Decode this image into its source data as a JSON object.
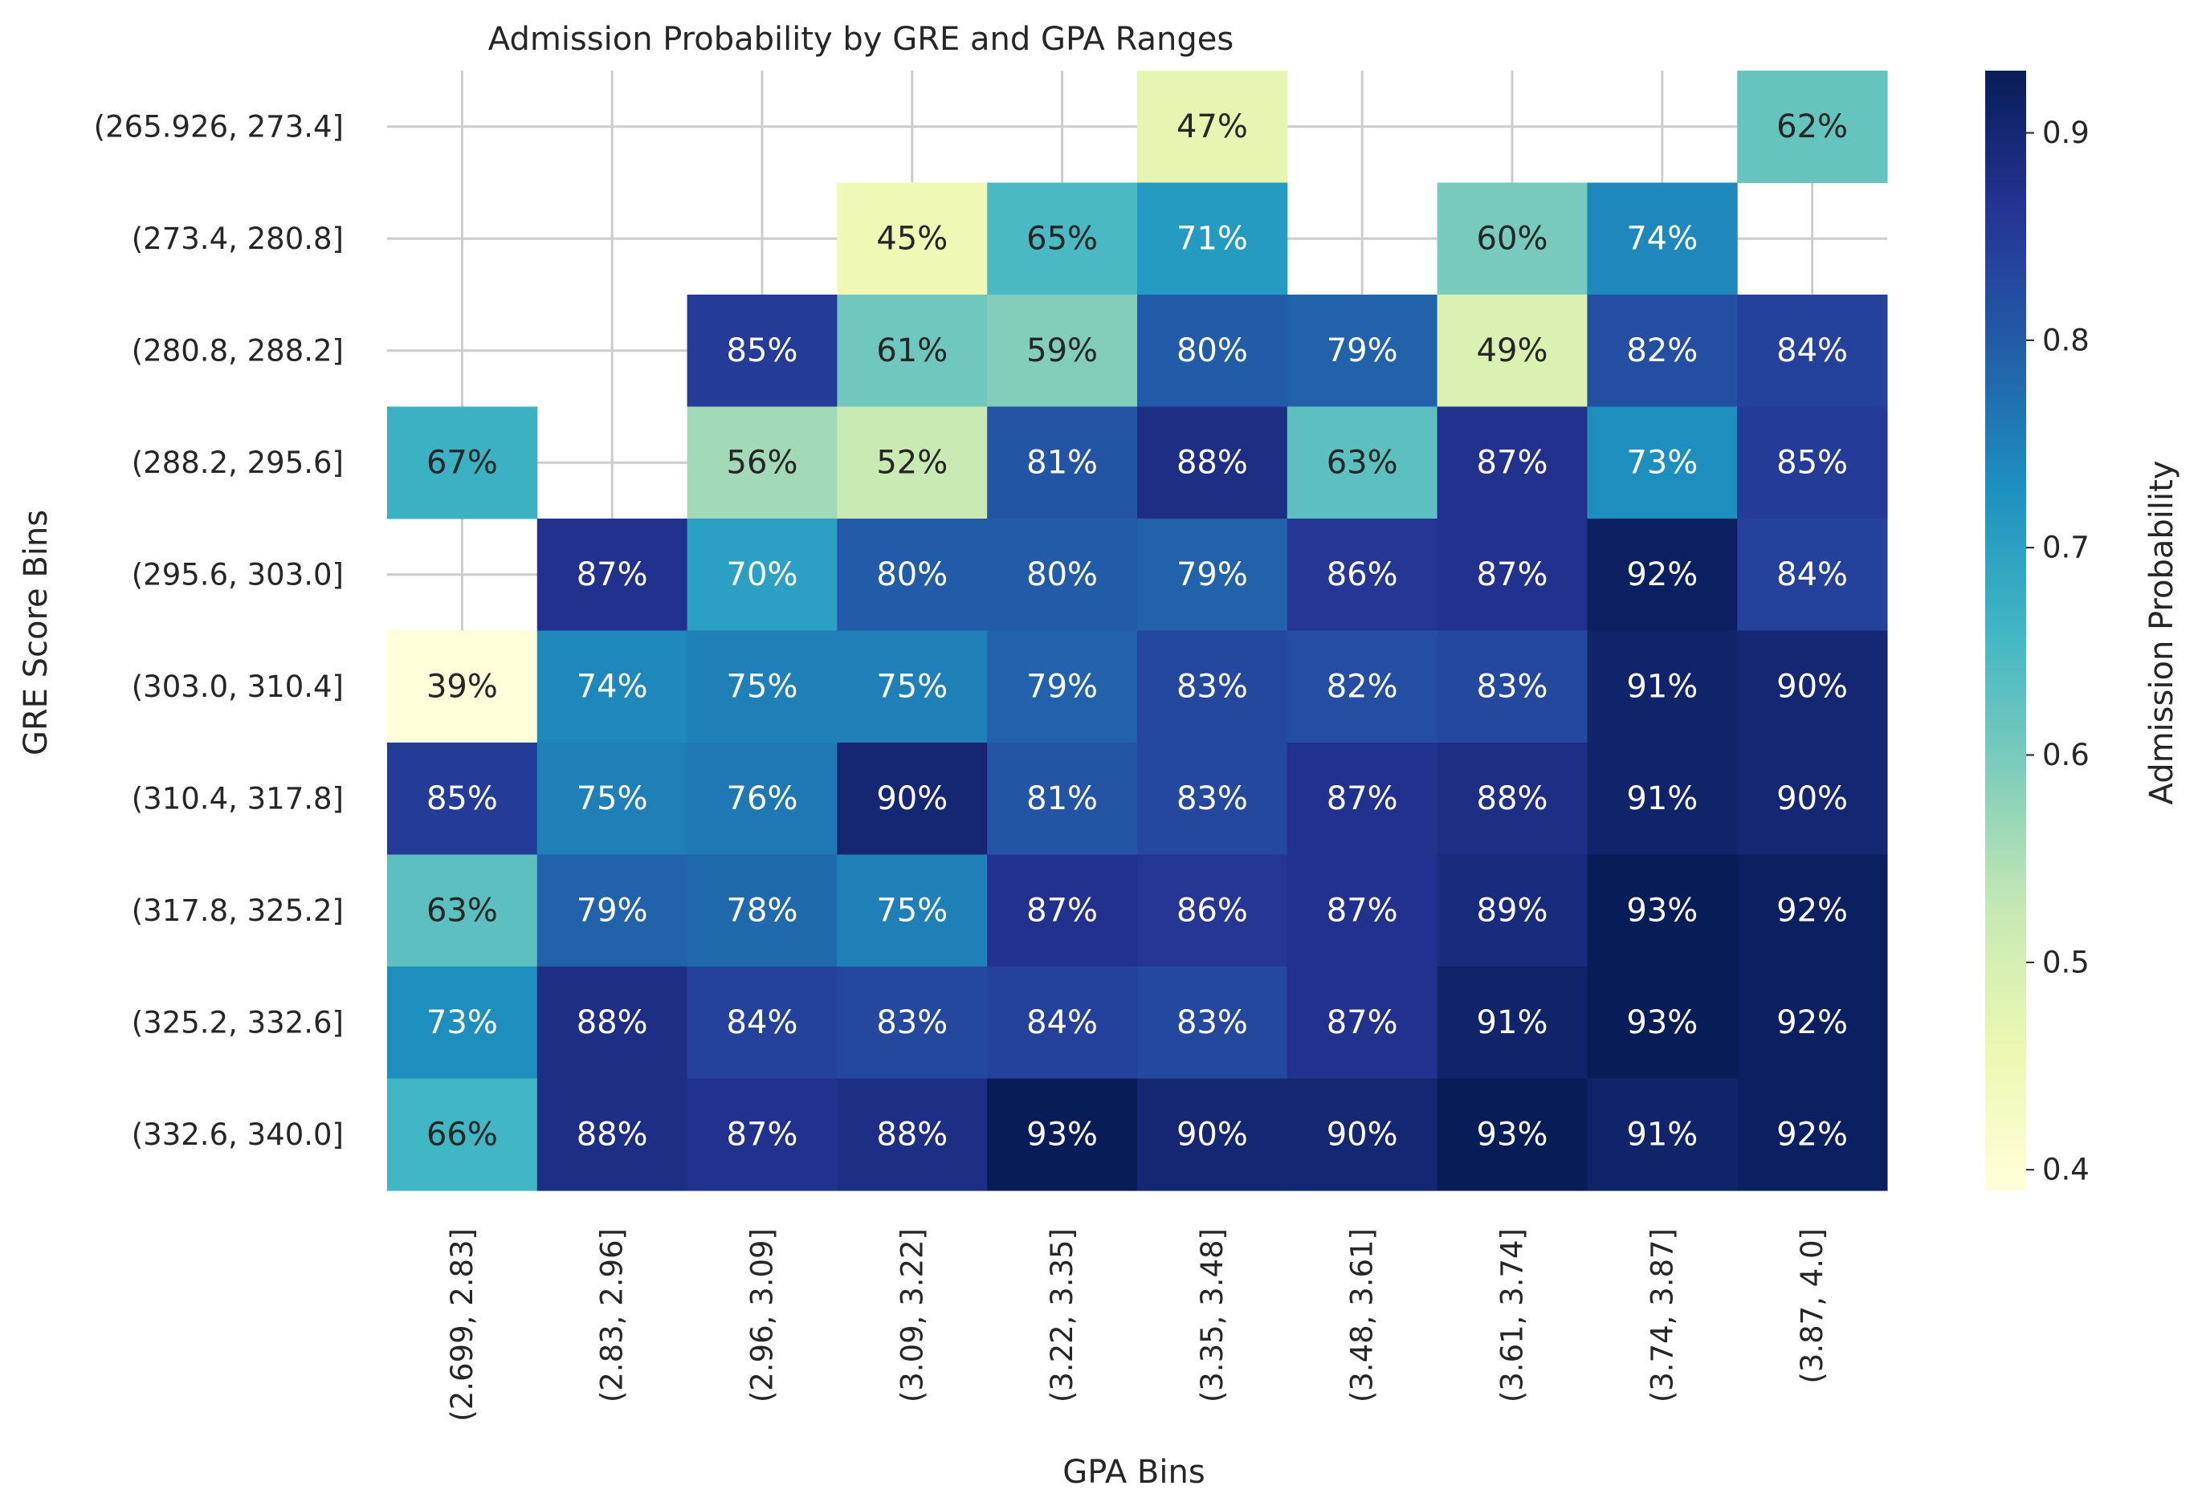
{
  "chart_data": {
    "type": "heatmap",
    "title": "Admission Probability by GRE and GPA Ranges",
    "xlabel": "GPA Bins",
    "ylabel": "GRE Score Bins",
    "x_categories": [
      "(2.699, 2.83]",
      "(2.83, 2.96]",
      "(2.96, 3.09]",
      "(3.09, 3.22]",
      "(3.22, 3.35]",
      "(3.35, 3.48]",
      "(3.48, 3.61]",
      "(3.61, 3.74]",
      "(3.74, 3.87]",
      "(3.87, 4.0]"
    ],
    "y_categories": [
      "(265.926, 273.4]",
      "(273.4, 280.8]",
      "(280.8, 288.2]",
      "(288.2, 295.6]",
      "(295.6, 303.0]",
      "(303.0, 310.4]",
      "(310.4, 317.8]",
      "(317.8, 325.2]",
      "(325.2, 332.6]",
      "(332.6, 340.0]"
    ],
    "values": [
      [
        null,
        null,
        null,
        null,
        null,
        0.47,
        null,
        null,
        null,
        0.62
      ],
      [
        null,
        null,
        null,
        0.45,
        0.65,
        0.71,
        null,
        0.6,
        0.74,
        null
      ],
      [
        null,
        null,
        0.85,
        0.61,
        0.59,
        0.8,
        0.79,
        0.49,
        0.82,
        0.84
      ],
      [
        0.67,
        null,
        0.56,
        0.52,
        0.81,
        0.88,
        0.63,
        0.87,
        0.73,
        0.85
      ],
      [
        null,
        0.87,
        0.7,
        0.8,
        0.8,
        0.79,
        0.86,
        0.87,
        0.92,
        0.84
      ],
      [
        0.39,
        0.74,
        0.75,
        0.75,
        0.79,
        0.83,
        0.82,
        0.83,
        0.91,
        0.9
      ],
      [
        0.85,
        0.75,
        0.76,
        0.9,
        0.81,
        0.83,
        0.87,
        0.88,
        0.91,
        0.9
      ],
      [
        0.63,
        0.79,
        0.78,
        0.75,
        0.87,
        0.86,
        0.87,
        0.89,
        0.93,
        0.92
      ],
      [
        0.73,
        0.88,
        0.84,
        0.83,
        0.84,
        0.83,
        0.87,
        0.91,
        0.93,
        0.92
      ],
      [
        0.66,
        0.88,
        0.87,
        0.88,
        0.93,
        0.9,
        0.9,
        0.93,
        0.91,
        0.92
      ]
    ],
    "value_format": "percent",
    "colormap": "YlGnBu",
    "colorbar": {
      "label": "Admission Probability",
      "range": [
        0.39,
        0.93
      ],
      "ticks": [
        0.4,
        0.5,
        0.6,
        0.7,
        0.8,
        0.9
      ],
      "tick_labels": [
        "0.4",
        "0.5",
        "0.6",
        "0.7",
        "0.8",
        "0.9"
      ]
    },
    "grid": true
  }
}
